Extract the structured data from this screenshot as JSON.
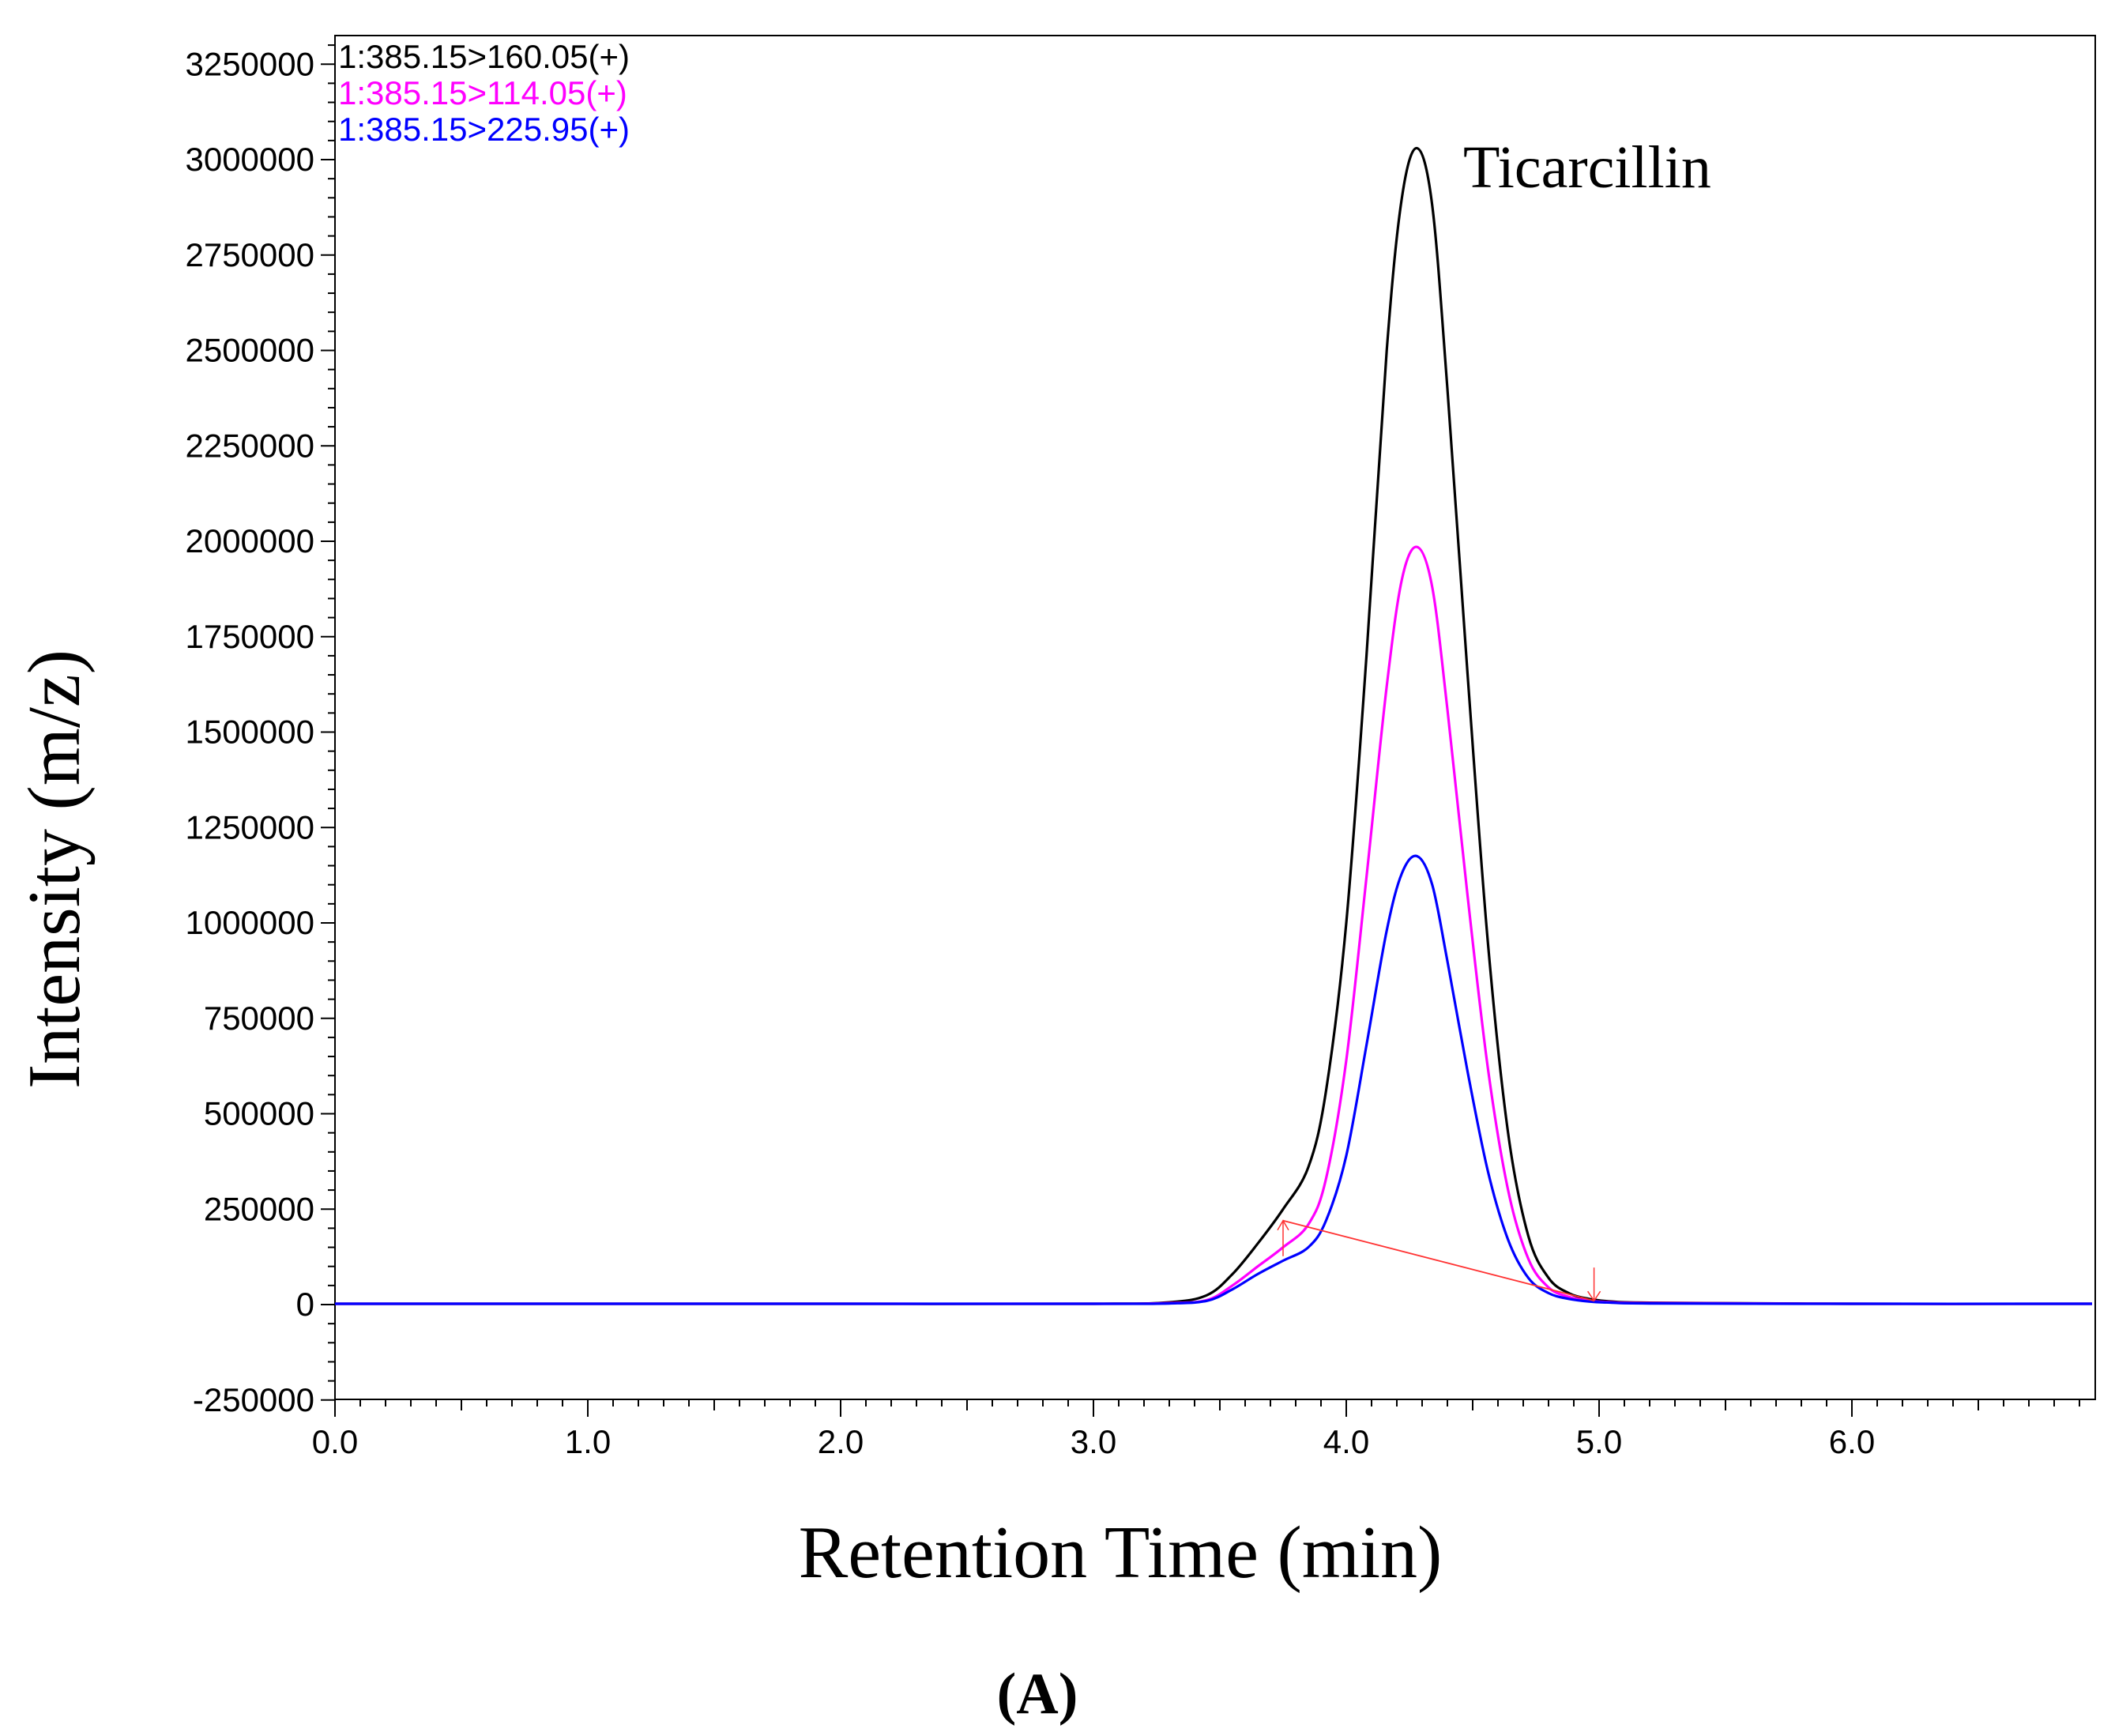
{
  "chart_data": {
    "type": "line",
    "xlabel": "Retention Time (min)",
    "ylabel": "Intensity (m/z)",
    "xlim": [
      0.0,
      6.95
    ],
    "ylim": [
      -250000,
      3400000
    ],
    "x_ticks": [
      "0.0",
      "1.0",
      "2.0",
      "3.0",
      "4.0",
      "5.0",
      "6.0"
    ],
    "x_tick_values": [
      0.0,
      1.0,
      2.0,
      3.0,
      4.0,
      5.0,
      6.0
    ],
    "y_ticks": [
      "3250000",
      "3000000",
      "2750000",
      "2500000",
      "2250000",
      "2000000",
      "1750000",
      "1500000",
      "1250000",
      "1000000",
      "750000",
      "500000",
      "250000",
      "0",
      "-250000"
    ],
    "y_tick_values": [
      3250000,
      3000000,
      2750000,
      2500000,
      2250000,
      2000000,
      1750000,
      1500000,
      1250000,
      1000000,
      750000,
      500000,
      250000,
      0,
      -250000
    ],
    "annotation": "Ticarcillin",
    "panel_label": "(A)",
    "x": [
      0.0,
      1.0,
      2.0,
      3.0,
      3.3,
      3.45,
      3.55,
      3.65,
      3.75,
      3.85,
      3.92,
      4.0,
      4.08,
      4.16,
      4.22,
      4.28,
      4.34,
      4.4,
      4.48,
      4.56,
      4.64,
      4.72,
      4.8,
      4.88,
      4.96,
      5.05,
      5.2,
      6.0,
      6.95
    ],
    "series": [
      {
        "name": "1:385.15>160.05(+)",
        "color": "#000000",
        "values": [
          2000,
          2000,
          2000,
          2000,
          6000,
          25000,
          80000,
          160000,
          250000,
          360000,
          560000,
          1000000,
          1700000,
          2500000,
          2900000,
          3030000,
          2880000,
          2400000,
          1650000,
          950000,
          450000,
          180000,
          70000,
          30000,
          15000,
          8000,
          5000,
          2000,
          2000
        ]
      },
      {
        "name": "1:385.15>114.05(+)",
        "color": "#ff00ff",
        "values": [
          2000,
          2000,
          2000,
          2000,
          4000,
          12000,
          50000,
          100000,
          150000,
          210000,
          330000,
          640000,
          1120000,
          1620000,
          1900000,
          1985000,
          1880000,
          1560000,
          1070000,
          620000,
          300000,
          120000,
          45000,
          20000,
          10000,
          6000,
          4000,
          2000,
          2000
        ]
      },
      {
        "name": "1:385.15>225.95(+)",
        "color": "#0000ff",
        "values": [
          2000,
          2000,
          2000,
          2000,
          3000,
          10000,
          40000,
          80000,
          115000,
          150000,
          220000,
          390000,
          680000,
          980000,
          1130000,
          1175000,
          1100000,
          900000,
          610000,
          350000,
          170000,
          70000,
          30000,
          15000,
          8000,
          5000,
          3000,
          2000,
          2000
        ]
      }
    ],
    "baseline_marker": {
      "color": "#ff3333",
      "start": [
        3.75,
        220000
      ],
      "end": [
        4.98,
        10000
      ]
    }
  }
}
